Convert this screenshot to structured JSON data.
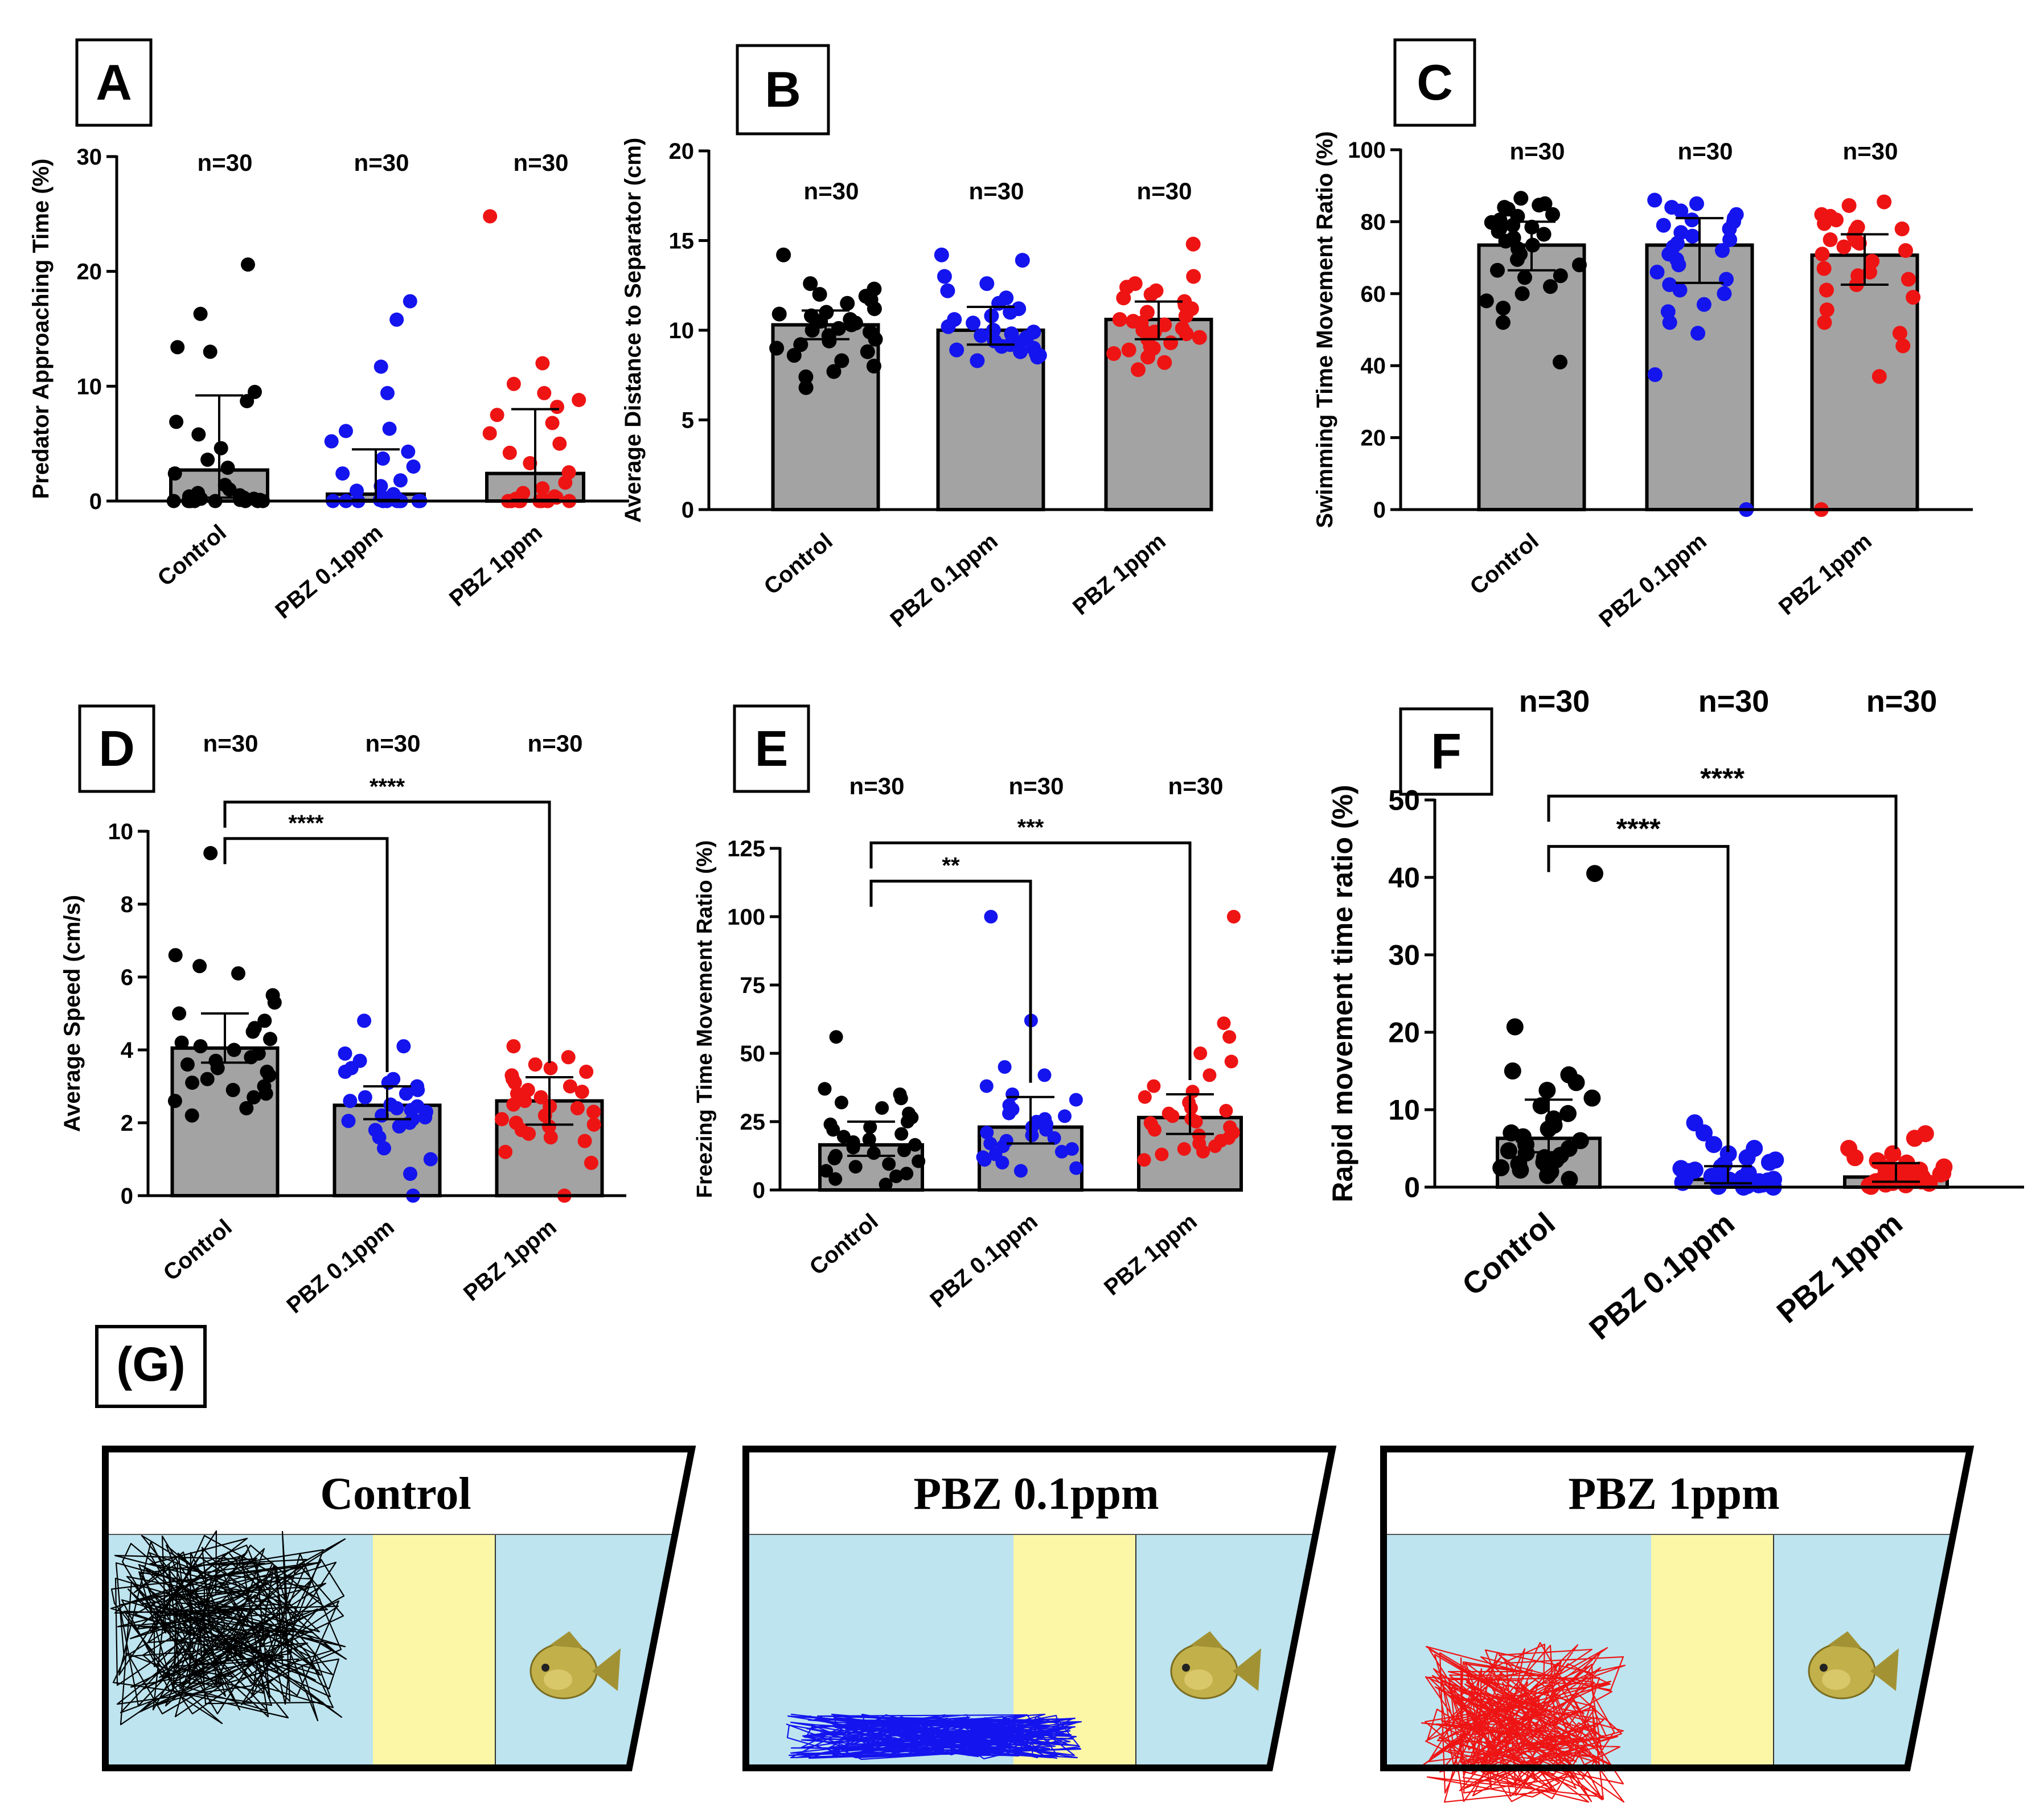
{
  "figure": {
    "colors": {
      "control": "#000000",
      "pbz01": "#1414ee",
      "pbz1": "#ee1414",
      "bar": "#a3a3a3",
      "tank": "#bde4ef",
      "separator": "#fbf7a7"
    },
    "group_labels": [
      "Control",
      "PBZ 0.1ppm",
      "PBZ 1ppm"
    ]
  },
  "chart_data": [
    {
      "id": "A",
      "type": "bar",
      "panel_label": "A",
      "ylabel": "Predator Approaching Time (%)",
      "ylim": [
        0,
        30
      ],
      "yticks": [
        0,
        10,
        20,
        30
      ],
      "categories": [
        "Control",
        "PBZ 0.1ppm",
        "PBZ 1ppm"
      ],
      "values": [
        2.7,
        0.6,
        2.4
      ],
      "error_low": [
        0.3,
        0.1,
        0.1
      ],
      "error_high": [
        9.2,
        4.5,
        8.0
      ],
      "n_labels": [
        "n=30",
        "n=30",
        "n=30"
      ],
      "points": [
        [
          20.6,
          16.3,
          13.4,
          13.0,
          9.5,
          8.7,
          6.9,
          5.8,
          4.6,
          3.6,
          2.9,
          2.4,
          1.4,
          1.0,
          0.7,
          0.5,
          0.4,
          0.3,
          0.2,
          0.2,
          0.1,
          0.1,
          0,
          0,
          0,
          0,
          0,
          0,
          0,
          0
        ],
        [
          17.4,
          15.8,
          11.7,
          9.4,
          6.3,
          6.1,
          5.2,
          4.3,
          3.7,
          3.0,
          2.4,
          1.8,
          1.3,
          0.9,
          0.6,
          0.4,
          0.3,
          0.2,
          0.1,
          0.1,
          0,
          0,
          0,
          0,
          0,
          0,
          0,
          0,
          0,
          0
        ],
        [
          24.8,
          12.0,
          10.2,
          9.4,
          8.8,
          8.2,
          7.5,
          6.8,
          5.9,
          5.0,
          4.2,
          3.3,
          2.5,
          1.6,
          1.1,
          0.7,
          0.4,
          0.3,
          0.2,
          0.1,
          0,
          0,
          0,
          0,
          0,
          0,
          0,
          0,
          0,
          0
        ]
      ],
      "annotations": []
    },
    {
      "id": "B",
      "type": "bar",
      "panel_label": "B",
      "ylabel": "Average Distance to Separator (cm)",
      "ylim": [
        0,
        20
      ],
      "yticks": [
        0,
        5,
        10,
        15,
        20
      ],
      "categories": [
        "Control",
        "PBZ 0.1ppm",
        "PBZ 1ppm"
      ],
      "values": [
        10.3,
        10.0,
        10.6
      ],
      "error_low": [
        9.5,
        9.2,
        9.5
      ],
      "error_high": [
        11.1,
        11.3,
        11.6
      ],
      "n_labels": [
        "n=30",
        "n=30",
        "n=30"
      ],
      "points": [
        [
          14.2,
          12.6,
          12.3,
          12.0,
          11.9,
          11.7,
          11.5,
          11.2,
          11.0,
          10.9,
          10.8,
          10.6,
          10.5,
          10.4,
          10.3,
          10.1,
          10.0,
          9.9,
          9.7,
          9.5,
          9.4,
          9.2,
          9.0,
          8.8,
          8.6,
          8.3,
          8.0,
          7.7,
          7.4,
          6.8
        ],
        [
          14.2,
          13.9,
          13.0,
          12.6,
          12.2,
          11.8,
          11.5,
          11.2,
          11.0,
          10.8,
          10.6,
          10.4,
          10.2,
          10.0,
          9.9,
          9.8,
          9.7,
          9.6,
          9.5,
          9.4,
          9.3,
          9.2,
          9.1,
          9.0,
          8.9,
          8.8,
          8.7,
          8.6,
          8.5,
          8.3
        ],
        [
          14.8,
          13.0,
          12.6,
          12.4,
          12.2,
          12.0,
          11.8,
          11.6,
          11.4,
          11.2,
          11.0,
          10.8,
          10.6,
          10.5,
          10.4,
          10.3,
          10.1,
          10.0,
          9.9,
          9.8,
          9.6,
          9.5,
          9.3,
          9.1,
          9.0,
          8.9,
          8.7,
          8.5,
          8.2,
          7.8
        ]
      ],
      "annotations": []
    },
    {
      "id": "C",
      "type": "bar",
      "panel_label": "C",
      "ylabel": "Swimming Time Movement  Ratio (%)",
      "ylim": [
        0,
        100
      ],
      "yticks": [
        0,
        20,
        40,
        60,
        80,
        100
      ],
      "categories": [
        "Control",
        "PBZ 0.1ppm",
        "PBZ 1ppm"
      ],
      "values": [
        73.5,
        73.5,
        70.7
      ],
      "error_low": [
        66.5,
        63.0,
        62.5
      ],
      "error_high": [
        80.0,
        81.0,
        76.5
      ],
      "n_labels": [
        "n=30",
        "n=30",
        "n=30"
      ],
      "points": [
        [
          86.5,
          85.0,
          84.6,
          84.0,
          83.5,
          82.0,
          81.5,
          80.5,
          79.8,
          79.0,
          78.5,
          78.0,
          77.3,
          76.5,
          75.5,
          74.6,
          73.5,
          72.5,
          71.0,
          69.5,
          68.0,
          66.5,
          65.0,
          64.5,
          62.0,
          60.0,
          58.0,
          56.0,
          52.0,
          41.0
        ],
        [
          86.0,
          85.0,
          84.0,
          83.0,
          82.0,
          81.0,
          80.5,
          80.0,
          79.0,
          78.0,
          77.0,
          76.0,
          75.0,
          74.0,
          73.0,
          72.0,
          71.0,
          69.5,
          68.0,
          66.0,
          64.0,
          62.5,
          61.0,
          60.0,
          57.0,
          55.0,
          52.0,
          49.0,
          37.5,
          0
        ],
        [
          85.5,
          84.5,
          82.0,
          81.5,
          80.5,
          79.5,
          78.5,
          78.0,
          77.5,
          76.0,
          75.0,
          74.5,
          74.0,
          73.0,
          72.0,
          71.0,
          69.0,
          67.0,
          66.0,
          65.0,
          64.0,
          62.5,
          61.0,
          59.0,
          55.5,
          52.0,
          49.0,
          45.5,
          37.0,
          0
        ]
      ],
      "annotations": []
    },
    {
      "id": "D",
      "type": "bar",
      "panel_label": "D",
      "ylabel": "Average Speed (cm/s)",
      "ylim": [
        0,
        10
      ],
      "yticks": [
        0,
        2,
        4,
        6,
        8,
        10
      ],
      "categories": [
        "Control",
        "PBZ 0.1ppm",
        "PBZ 1ppm"
      ],
      "values": [
        4.05,
        2.48,
        2.6
      ],
      "error_low": [
        3.65,
        2.1,
        1.95
      ],
      "error_high": [
        5.0,
        3.0,
        3.25
      ],
      "n_labels": [
        "n=30",
        "n=30",
        "n=30"
      ],
      "points": [
        [
          9.4,
          6.6,
          6.3,
          6.1,
          5.5,
          5.3,
          5.0,
          4.8,
          4.6,
          4.5,
          4.3,
          4.2,
          4.1,
          4.0,
          3.9,
          3.8,
          3.7,
          3.6,
          3.5,
          3.4,
          3.3,
          3.2,
          3.1,
          3.0,
          2.9,
          2.8,
          2.7,
          2.6,
          2.4,
          2.2
        ],
        [
          4.8,
          4.1,
          3.9,
          3.7,
          3.5,
          3.4,
          3.2,
          3.1,
          3.0,
          2.9,
          2.8,
          2.7,
          2.6,
          2.5,
          2.45,
          2.4,
          2.35,
          2.3,
          2.2,
          2.15,
          2.1,
          2.05,
          2.0,
          1.9,
          1.8,
          1.6,
          1.3,
          1.0,
          0.6,
          0
        ],
        [
          4.1,
          3.8,
          3.6,
          3.5,
          3.4,
          3.3,
          3.2,
          3.1,
          3.0,
          2.9,
          2.85,
          2.8,
          2.7,
          2.6,
          2.5,
          2.45,
          2.4,
          2.3,
          2.2,
          2.1,
          2.0,
          1.95,
          1.9,
          1.8,
          1.7,
          1.6,
          1.5,
          1.2,
          0.9,
          0
        ]
      ],
      "annotations": [
        {
          "from": 0,
          "to": 1,
          "level": 9.8,
          "label": "****"
        },
        {
          "from": 0,
          "to": 2,
          "level": 10.8,
          "label": "****"
        }
      ]
    },
    {
      "id": "E",
      "type": "bar",
      "panel_label": "E",
      "ylabel": "Freezing Time Movement Ratio (%)",
      "ylim": [
        0,
        125
      ],
      "yticks": [
        0,
        25,
        50,
        75,
        100,
        125
      ],
      "categories": [
        "Control",
        "PBZ 0.1ppm",
        "PBZ 1ppm"
      ],
      "values": [
        16.5,
        23.0,
        26.5
      ],
      "error_low": [
        12.5,
        17.0,
        20.5
      ],
      "error_high": [
        25.0,
        34.0,
        35.0
      ],
      "n_labels": [
        "n=30",
        "n=30",
        "n=30"
      ],
      "points": [
        [
          56.0,
          37.0,
          35.0,
          33.5,
          32.0,
          30.0,
          28.0,
          26.5,
          25.0,
          24.0,
          23.0,
          22.0,
          20.5,
          19.5,
          18.5,
          17.5,
          16.5,
          15.5,
          14.5,
          13.5,
          12.5,
          11.5,
          10.5,
          9.5,
          8.5,
          7.0,
          6.0,
          5.0,
          4.0,
          2.0
        ],
        [
          100.0,
          62.0,
          45.0,
          42.0,
          38.0,
          35.0,
          33.0,
          31.0,
          29.5,
          28.0,
          27.0,
          26.0,
          25.0,
          24.0,
          23.0,
          22.0,
          21.0,
          20.0,
          19.0,
          18.0,
          17.0,
          16.0,
          15.0,
          14.0,
          13.0,
          12.0,
          11.0,
          10.0,
          8.0,
          7.0
        ],
        [
          100.0,
          61.0,
          56.0,
          50.0,
          47.0,
          42.0,
          38.0,
          36.0,
          34.0,
          32.0,
          30.0,
          29.0,
          28.0,
          27.0,
          26.0,
          25.0,
          24.5,
          24.0,
          23.0,
          22.0,
          21.0,
          20.0,
          19.0,
          18.0,
          17.0,
          16.0,
          15.0,
          14.0,
          13.0,
          11.0
        ]
      ],
      "annotations": [
        {
          "from": 0,
          "to": 1,
          "level": 113,
          "label": "**"
        },
        {
          "from": 0,
          "to": 2,
          "level": 127,
          "label": "***"
        }
      ]
    },
    {
      "id": "F",
      "type": "bar",
      "panel_label": "F",
      "ylabel": "Rapid movement time ratio (%)",
      "ylim": [
        0,
        50
      ],
      "yticks": [
        0,
        10,
        20,
        30,
        40,
        50
      ],
      "categories": [
        "Control",
        "PBZ 0.1ppm",
        "PBZ 1ppm"
      ],
      "values": [
        6.3,
        1.0,
        1.3
      ],
      "error_low": [
        4.5,
        0.5,
        0.7
      ],
      "error_high": [
        11.3,
        2.7,
        3.1
      ],
      "n_labels": [
        "n=30",
        "n=30",
        "n=30"
      ],
      "points": [
        [
          40.5,
          20.7,
          15.0,
          14.5,
          13.5,
          12.5,
          11.5,
          10.5,
          9.5,
          8.8,
          8.0,
          7.5,
          7.0,
          6.5,
          6.0,
          5.5,
          5.0,
          4.7,
          4.4,
          4.1,
          3.8,
          3.5,
          3.2,
          3.0,
          2.8,
          2.5,
          2.2,
          2.0,
          1.5,
          1.0
        ],
        [
          8.3,
          7.0,
          5.5,
          5.0,
          4.3,
          3.8,
          3.5,
          3.2,
          2.9,
          2.6,
          2.4,
          2.2,
          2.0,
          1.8,
          1.6,
          1.4,
          1.2,
          1.1,
          1.0,
          0.9,
          0.8,
          0.7,
          0.6,
          0.5,
          0.4,
          0.3,
          0.2,
          0.1,
          0,
          0
        ],
        [
          6.9,
          6.3,
          5.0,
          4.3,
          3.8,
          3.4,
          3.1,
          2.8,
          2.6,
          2.4,
          2.2,
          2.0,
          1.8,
          1.7,
          1.6,
          1.5,
          1.4,
          1.3,
          1.2,
          1.1,
          1.0,
          0.9,
          0.8,
          0.7,
          0.6,
          0.5,
          0.4,
          0.3,
          0.2,
          0.1
        ]
      ],
      "annotations": [
        {
          "from": 0,
          "to": 1,
          "level": 44,
          "label": "****"
        },
        {
          "from": 0,
          "to": 2,
          "level": 50.5,
          "label": "****"
        }
      ]
    }
  ],
  "tracks": {
    "panel_label": "(G)",
    "tanks": [
      {
        "title": "Control",
        "color": "#000000"
      },
      {
        "title": "PBZ 0.1ppm",
        "color": "#1414ee"
      },
      {
        "title": "PBZ 1ppm",
        "color": "#ee1414"
      }
    ]
  }
}
